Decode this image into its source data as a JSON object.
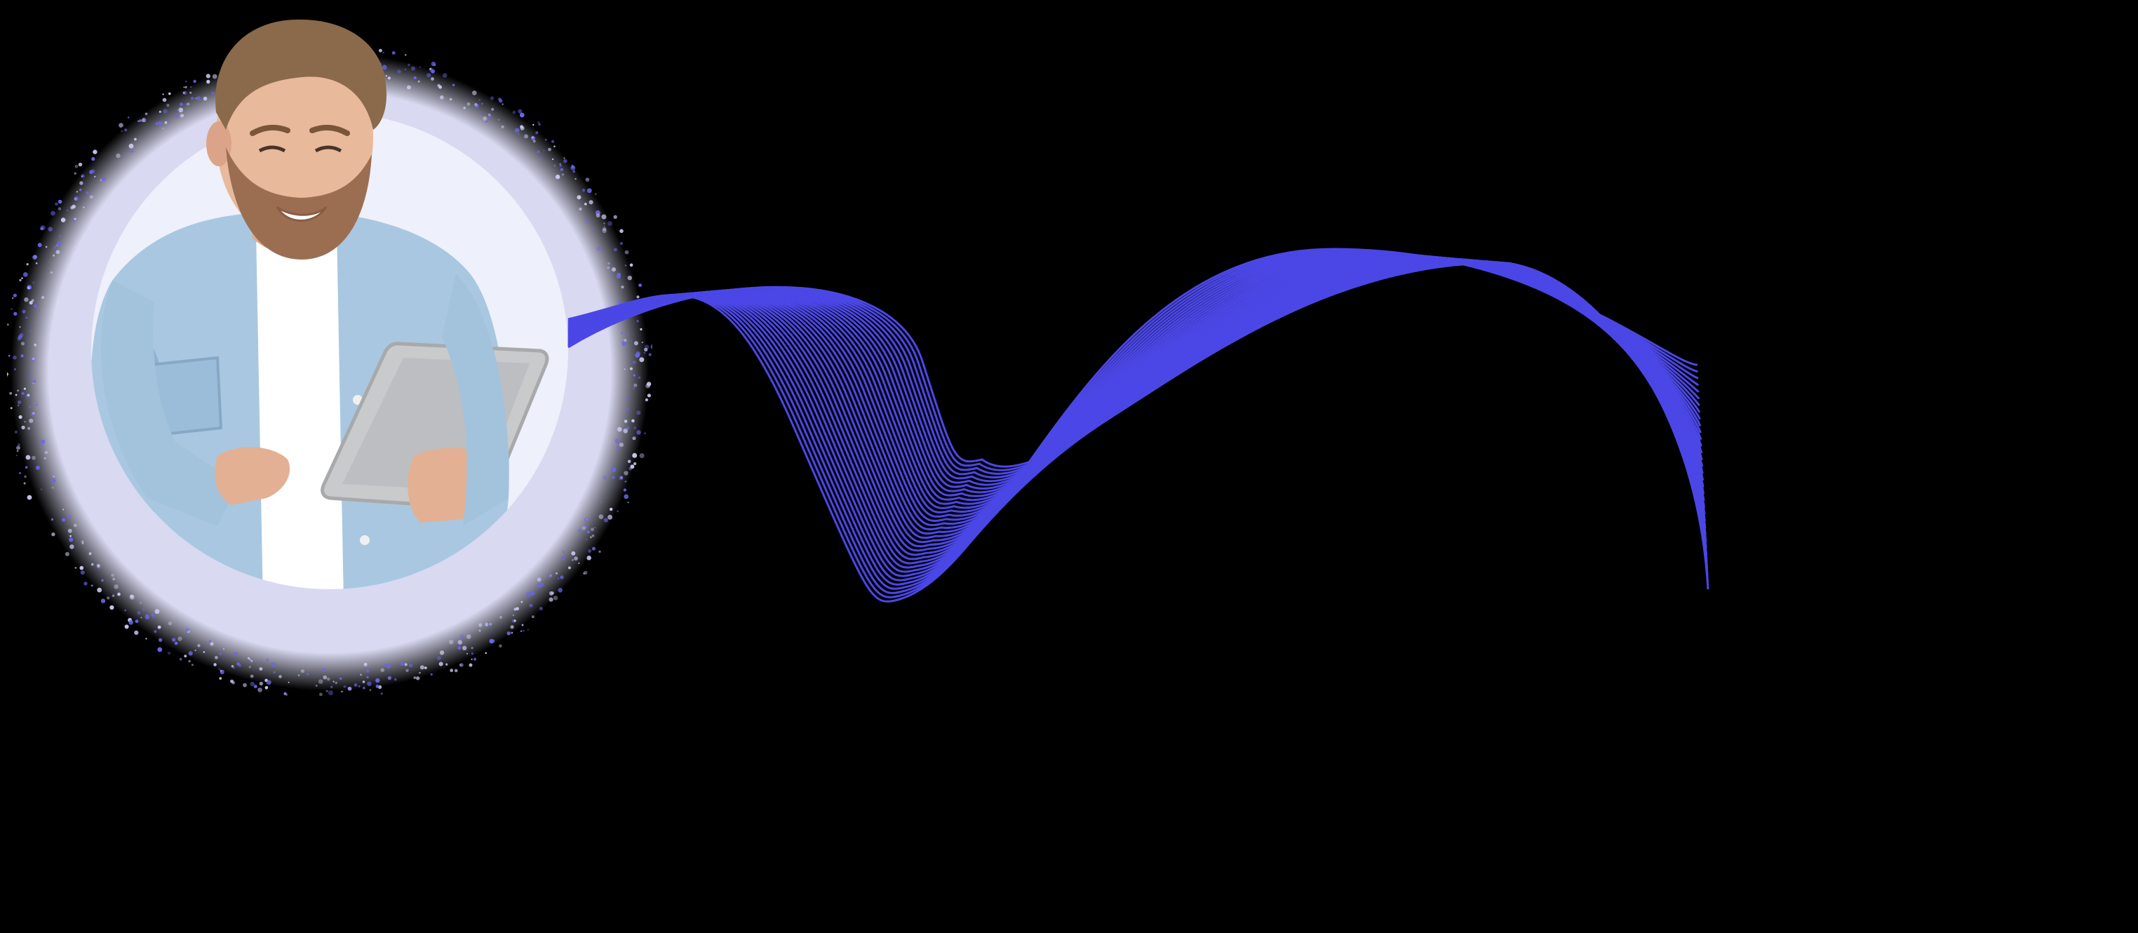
{
  "scene": {
    "background_color": "#000000",
    "halo_color": "#d9d9f2",
    "inner_circle_color": "#eef0fb",
    "wave_color": "#4b47e6",
    "shirt_color": "#a9c7e0",
    "tshirt_color": "#ffffff",
    "skin_color": "#e9b99c",
    "hair_color": "#8a6a4a",
    "beard_color": "#9b6e52",
    "tablet_color": "#c9cacc"
  },
  "wave": {
    "line_count": 34
  }
}
